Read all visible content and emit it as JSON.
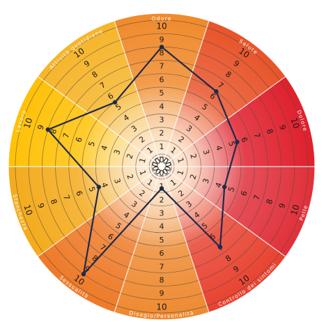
{
  "chart_data": {
    "type": "radar",
    "title": "",
    "rlim": [
      0,
      10
    ],
    "ring_ticks": [
      0,
      1,
      2,
      3,
      4,
      5,
      6,
      7,
      8,
      9,
      10
    ],
    "grid": true,
    "legend": "none",
    "categories": [
      "Odore",
      "Salute",
      "Dolore",
      "Pelle",
      "Controllo dei sintomi",
      "Disagio/Personalità",
      "Sessualità",
      "Stanchezza",
      "Lavoro",
      "Attività quotidiane"
    ],
    "series": [
      {
        "values": [
          8,
          6,
          5,
          4,
          6.5,
          0.7,
          9,
          4,
          8,
          5
        ],
        "color": "#1f2a4a"
      }
    ],
    "colors": {
      "center": "#fdf1e3",
      "sector_tones": [
        "#f08a2c",
        "#e8542a",
        "#df1f2c",
        "#e0303a",
        "#e84230",
        "#ee8a30",
        "#ee7a28",
        "#f4ab1c",
        "#ffc107",
        "#f6b52a"
      ],
      "line": "#1f2a4a",
      "ring": "#5a4a40",
      "label": "#ffffff"
    }
  }
}
